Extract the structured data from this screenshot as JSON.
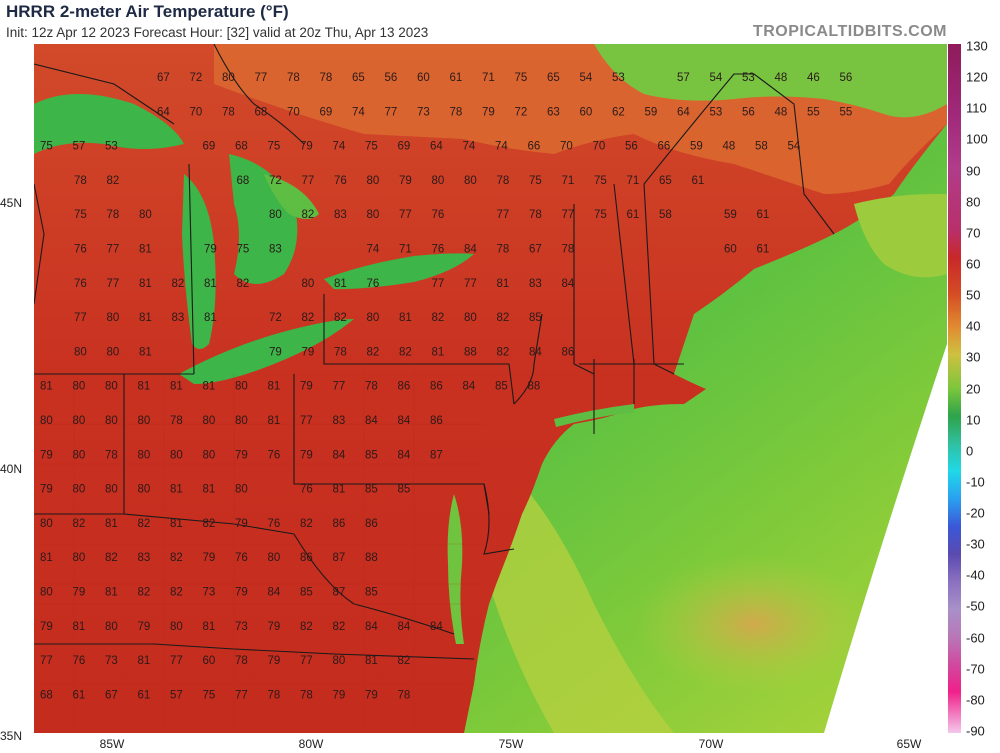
{
  "header": {
    "title": "HRRR 2-meter Air Temperature (°F)",
    "subtitle": "Init: 12z Apr 12 2023   Forecast Hour: [32]   valid at 20z Thu, Apr 13 2023",
    "brand": "TROPICALTIDBITS.COM"
  },
  "axes": {
    "lat_labels": [
      "45N",
      "40N",
      "35N"
    ],
    "lon_labels": [
      "85W",
      "80W",
      "75W",
      "70W",
      "65W"
    ]
  },
  "colorbar": {
    "ticks": [
      "130",
      "120",
      "110",
      "100",
      "90",
      "80",
      "70",
      "60",
      "50",
      "40",
      "30",
      "20",
      "10",
      "0",
      "-10",
      "-20",
      "-30",
      "-40",
      "-50",
      "-60",
      "-70",
      "-80",
      "-90"
    ]
  },
  "temperature_labels": [
    {
      "row": 0,
      "values": [
        "67",
        "72",
        "80",
        "77",
        "78",
        "78",
        "65",
        "56",
        "60",
        "61",
        "71",
        "75",
        "65",
        "54",
        "53",
        "",
        "57",
        "54",
        "53",
        "48",
        "46",
        "56"
      ]
    },
    {
      "row": 1,
      "values": [
        "64",
        "70",
        "78",
        "68",
        "70",
        "69",
        "74",
        "77",
        "73",
        "78",
        "79",
        "72",
        "63",
        "60",
        "62",
        "59",
        "64",
        "53",
        "56",
        "48",
        "55",
        "55"
      ]
    },
    {
      "row": 2,
      "values": [
        "75",
        "57",
        "53",
        "",
        "",
        "69",
        "68",
        "75",
        "79",
        "74",
        "75",
        "69",
        "64",
        "74",
        "74",
        "66",
        "70",
        "70",
        "56",
        "66",
        "59",
        "48",
        "58",
        "54"
      ]
    },
    {
      "row": 3,
      "values": [
        "78",
        "82",
        "",
        "",
        "",
        "68",
        "72",
        "77",
        "76",
        "80",
        "79",
        "80",
        "80",
        "78",
        "75",
        "71",
        "75",
        "71",
        "65",
        "61"
      ]
    },
    {
      "row": 4,
      "values": [
        "75",
        "78",
        "80",
        "",
        "",
        "",
        "80",
        "82",
        "83",
        "80",
        "77",
        "76",
        "",
        "77",
        "78",
        "77",
        "75",
        "61",
        "58",
        "",
        "59",
        "61"
      ]
    },
    {
      "row": 5,
      "values": [
        "76",
        "77",
        "81",
        "",
        "79",
        "75",
        "83",
        "",
        "",
        "74",
        "71",
        "76",
        "84",
        "78",
        "67",
        "78",
        "",
        "",
        "",
        "",
        "60",
        "61"
      ]
    },
    {
      "row": 6,
      "values": [
        "76",
        "77",
        "81",
        "82",
        "81",
        "82",
        "",
        "80",
        "81",
        "76",
        "",
        "77",
        "77",
        "81",
        "83",
        "84"
      ]
    },
    {
      "row": 7,
      "values": [
        "77",
        "80",
        "81",
        "83",
        "81",
        "",
        "72",
        "82",
        "82",
        "80",
        "81",
        "82",
        "80",
        "82",
        "85"
      ]
    },
    {
      "row": 8,
      "values": [
        "80",
        "80",
        "81",
        "",
        "",
        "",
        "79",
        "79",
        "78",
        "82",
        "82",
        "81",
        "88",
        "82",
        "84",
        "86"
      ]
    },
    {
      "row": 9,
      "values": [
        "81",
        "80",
        "80",
        "81",
        "81",
        "81",
        "80",
        "81",
        "79",
        "77",
        "78",
        "86",
        "86",
        "84",
        "85",
        "88"
      ]
    },
    {
      "row": 10,
      "values": [
        "80",
        "80",
        "80",
        "80",
        "78",
        "80",
        "80",
        "81",
        "77",
        "83",
        "84",
        "84",
        "86"
      ]
    },
    {
      "row": 11,
      "values": [
        "79",
        "80",
        "78",
        "80",
        "80",
        "80",
        "79",
        "76",
        "79",
        "84",
        "85",
        "84",
        "87"
      ]
    },
    {
      "row": 12,
      "values": [
        "79",
        "80",
        "80",
        "80",
        "81",
        "81",
        "80",
        "",
        "76",
        "81",
        "85",
        "85"
      ]
    },
    {
      "row": 13,
      "values": [
        "80",
        "82",
        "81",
        "82",
        "81",
        "82",
        "79",
        "76",
        "82",
        "86",
        "86"
      ]
    },
    {
      "row": 14,
      "values": [
        "81",
        "80",
        "82",
        "83",
        "82",
        "79",
        "76",
        "80",
        "86",
        "87",
        "88"
      ]
    },
    {
      "row": 15,
      "values": [
        "80",
        "79",
        "81",
        "82",
        "82",
        "73",
        "79",
        "84",
        "85",
        "87",
        "85"
      ]
    },
    {
      "row": 16,
      "values": [
        "79",
        "81",
        "80",
        "79",
        "80",
        "81",
        "73",
        "79",
        "82",
        "82",
        "84",
        "84",
        "84"
      ]
    },
    {
      "row": 17,
      "values": [
        "77",
        "76",
        "73",
        "81",
        "77",
        "60",
        "78",
        "79",
        "77",
        "80",
        "81",
        "82"
      ]
    },
    {
      "row": 18,
      "values": [
        "68",
        "61",
        "67",
        "61",
        "57",
        "75",
        "77",
        "78",
        "78",
        "79",
        "79",
        "78"
      ]
    }
  ]
}
